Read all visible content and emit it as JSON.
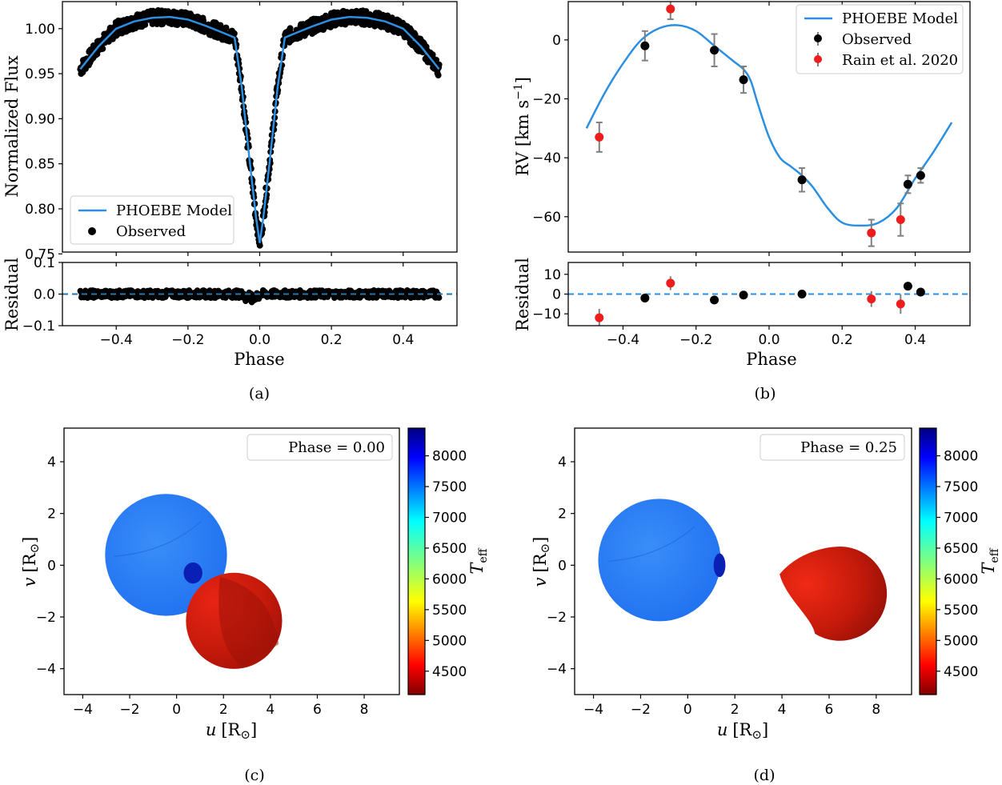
{
  "chart_data": [
    {
      "id": "a",
      "type": "line",
      "caption": "(a)",
      "title": "",
      "xlabel": "Phase",
      "ylabel": "Normalized Flux",
      "residual_ylabel": "Residual",
      "xlim": [
        -0.55,
        0.55
      ],
      "ylim": [
        0.752,
        1.03
      ],
      "residual_ylim": [
        -0.1,
        0.1
      ],
      "xticks": [
        -0.4,
        -0.2,
        0.0,
        0.2,
        0.4
      ],
      "xtick_labels": [
        "−0.4",
        "−0.2",
        "0.0",
        "0.2",
        "0.4"
      ],
      "yticks": [
        0.75,
        0.8,
        0.85,
        0.9,
        0.95,
        1.0
      ],
      "ytick_labels": [
        "0.75",
        "0.80",
        "0.85",
        "0.90",
        "0.95",
        "1.00"
      ],
      "residual_yticks": [
        -0.1,
        0.0,
        0.1
      ],
      "residual_ytick_labels": [
        "−0.1",
        "0.0",
        "0.1"
      ],
      "legend": [
        "PHOEBE Model",
        "Observed"
      ],
      "legend_position": "lower-left",
      "colors": {
        "model": "#2b8fe2",
        "observed": "#000000",
        "residual_zero": "#1f77b4"
      },
      "series": [
        {
          "name": "PHOEBE Model",
          "x": [
            -0.5,
            -0.45,
            -0.4,
            -0.35,
            -0.3,
            -0.25,
            -0.2,
            -0.15,
            -0.1,
            -0.07,
            -0.05,
            -0.03,
            -0.01,
            0.0,
            0.01,
            0.03,
            0.05,
            0.07,
            0.1,
            0.15,
            0.2,
            0.25,
            0.3,
            0.35,
            0.4,
            0.45,
            0.5
          ],
          "values": [
            0.955,
            0.98,
            1.0,
            1.008,
            1.012,
            1.013,
            1.01,
            1.003,
            0.995,
            0.99,
            0.935,
            0.86,
            0.79,
            0.762,
            0.79,
            0.86,
            0.935,
            0.99,
            0.995,
            1.003,
            1.01,
            1.013,
            1.012,
            1.008,
            1.0,
            0.98,
            0.955
          ]
        },
        {
          "name": "Observed",
          "scatter": "~1.0% about the model across all phases (dense black band)",
          "values_from_model_with_spread": 0.008
        }
      ],
      "residuals": {
        "zero_line": 0.0,
        "spread": 0.012,
        "dip_near_phase_-0.01": -0.03
      }
    },
    {
      "id": "b",
      "type": "line",
      "caption": "(b)",
      "xlabel": "Phase",
      "ylabel_main": "RV [km s",
      "ylabel_sup": "−1",
      "ylabel_end": "]",
      "residual_ylabel": "Residual",
      "xlim": [
        -0.55,
        0.55
      ],
      "ylim": [
        -72,
        13
      ],
      "residual_ylim": [
        -16,
        16
      ],
      "xticks": [
        -0.4,
        -0.2,
        0.0,
        0.2,
        0.4
      ],
      "xtick_labels": [
        "−0.4",
        "−0.2",
        "0.0",
        "0.2",
        "0.4"
      ],
      "yticks": [
        -60,
        -40,
        -20,
        0
      ],
      "ytick_labels": [
        "−60",
        "−40",
        "−20",
        "0"
      ],
      "residual_yticks": [
        -10,
        0,
        10
      ],
      "residual_ytick_labels": [
        "−10",
        "0",
        "10"
      ],
      "legend": [
        "PHOEBE Model",
        "Observed",
        "Rain et al. 2020"
      ],
      "legend_position": "upper-right",
      "colors": {
        "model": "#2b8fe2",
        "observed": "#000000",
        "rain": "#ee1c1c",
        "errorbar": "#808080"
      },
      "model": {
        "x": [
          -0.5,
          -0.45,
          -0.4,
          -0.35,
          -0.3,
          -0.25,
          -0.2,
          -0.15,
          -0.1,
          -0.07,
          -0.05,
          -0.03,
          0.0,
          0.03,
          0.06,
          0.09,
          0.12,
          0.16,
          0.2,
          0.25,
          0.3,
          0.35,
          0.4,
          0.45,
          0.5
        ],
        "values": [
          -30,
          -18,
          -8,
          0,
          4,
          5,
          3,
          -2,
          -7,
          -10,
          -14,
          -22,
          -33,
          -40,
          -43,
          -46,
          -50,
          -57,
          -62,
          -63,
          -62,
          -57,
          -47,
          -38,
          -28
        ]
      },
      "observed": [
        {
          "x": -0.34,
          "y": -2,
          "err": 5,
          "res": -2
        },
        {
          "x": -0.15,
          "y": -3.5,
          "err": 5.5,
          "res": -3
        },
        {
          "x": -0.07,
          "y": -13.5,
          "err": 4.5,
          "res": -0.5
        },
        {
          "x": 0.09,
          "y": -47.5,
          "err": 4,
          "res": 0
        },
        {
          "x": 0.38,
          "y": -49,
          "err": 3,
          "res": 4
        },
        {
          "x": 0.415,
          "y": -46,
          "err": 2.5,
          "res": 1
        }
      ],
      "rain_2020": [
        {
          "x": -0.465,
          "y": -33,
          "err": 5,
          "res": -12,
          "res_err": 4.5
        },
        {
          "x": -0.27,
          "y": 10.5,
          "err": 3.5,
          "res": 5.5,
          "res_err": 3.5
        },
        {
          "x": 0.28,
          "y": -65.5,
          "err": 4.5,
          "res": -2.5,
          "res_err": 4
        },
        {
          "x": 0.36,
          "y": -61,
          "err": 5.5,
          "res": -5,
          "res_err": 5
        }
      ]
    },
    {
      "id": "c",
      "type": "scatter",
      "caption": "(c)",
      "legend_text": "Phase = 0.00",
      "xlabel_var": "u",
      "ylabel_var": "v",
      "unit_label": "[R",
      "unit_sym": "⊙",
      "unit_end": "]",
      "xlim": [
        -4.8,
        9.5
      ],
      "ylim": [
        -5.0,
        5.3
      ],
      "xticks": [
        -4,
        -2,
        0,
        2,
        4,
        6,
        8
      ],
      "xtick_labels": [
        "−4",
        "−2",
        "0",
        "2",
        "4",
        "6",
        "8"
      ],
      "yticks": [
        -4,
        -2,
        0,
        2,
        4
      ],
      "ytick_labels": [
        "−4",
        "−2",
        "0",
        "2",
        "4"
      ],
      "stars": [
        {
          "name": "primary",
          "cx": -0.45,
          "cy": 0.4,
          "r": 2.6,
          "teff": 7450
        },
        {
          "name": "secondary",
          "cx": 2.45,
          "cy": -2.15,
          "r": 2.05,
          "teff": 4480
        }
      ],
      "spot": {
        "cx": 0.7,
        "cy": -0.3,
        "rx": 0.4,
        "ry": 0.45,
        "teff": 8300
      }
    },
    {
      "id": "d",
      "type": "scatter",
      "caption": "(d)",
      "legend_text": "Phase = 0.25",
      "xlabel_var": "u",
      "ylabel_var": "v",
      "unit_label": "[R",
      "unit_sym": "⊙",
      "unit_end": "]",
      "xlim": [
        -4.8,
        9.5
      ],
      "ylim": [
        -5.0,
        5.3
      ],
      "xticks": [
        -4,
        -2,
        0,
        2,
        4,
        6,
        8
      ],
      "xtick_labels": [
        "−4",
        "−2",
        "0",
        "2",
        "4",
        "6",
        "8"
      ],
      "yticks": [
        -4,
        -2,
        0,
        2,
        4
      ],
      "ytick_labels": [
        "−4",
        "−2",
        "0",
        "2",
        "4"
      ],
      "stars": [
        {
          "name": "primary",
          "cx": -1.2,
          "cy": 0.2,
          "r": 2.6,
          "teff": 7450
        },
        {
          "name": "secondary",
          "cx": 6.5,
          "cy": -1.1,
          "r": 2.0,
          "teff": 4480
        }
      ],
      "spot": {
        "cx": 1.35,
        "cy": 0.0,
        "rx": 0.25,
        "ry": 0.5,
        "teff": 8300
      }
    }
  ],
  "colorbar": {
    "label_main": "T",
    "label_sub": "eff",
    "ticks": [
      4500,
      5000,
      5500,
      6000,
      6500,
      7000,
      7500,
      8000
    ],
    "tick_labels": [
      "4500",
      "5000",
      "5500",
      "6000",
      "6500",
      "7000",
      "7500",
      "8000"
    ],
    "range": [
      4120,
      8450
    ]
  }
}
